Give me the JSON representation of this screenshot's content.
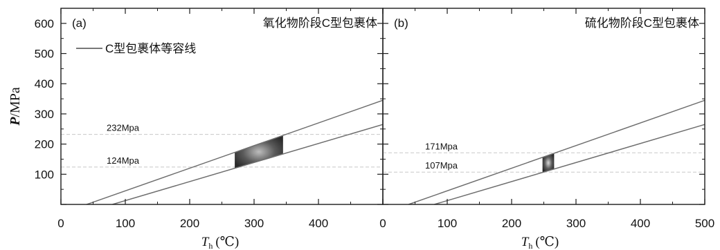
{
  "chart_data": {
    "type": "line",
    "y_axis": {
      "label_italic": "P",
      "label_rest": "/MPa",
      "range": [
        0,
        650
      ],
      "ticks": [
        100,
        200,
        300,
        400,
        500,
        600
      ]
    },
    "x_axis": {
      "label_italic": "T",
      "label_sub": "h",
      "label_unit": "(℃)",
      "range": [
        0,
        500
      ]
    },
    "panels": [
      {
        "tag": "(a)",
        "title": "氧化物阶段C型包裹体",
        "x_ticks": [
          "0",
          "100",
          "200",
          "300",
          "400",
          ""
        ],
        "legend": {
          "label": "C型包裹体等容线",
          "placement": "top-left"
        },
        "isochores": [
          {
            "x": [
              40,
              500
            ],
            "y": [
              0,
              345
            ]
          },
          {
            "x": [
              80,
              500
            ],
            "y": [
              0,
              265
            ]
          }
        ],
        "reference_lines": [
          {
            "y": 232,
            "label": "232Mpa"
          },
          {
            "y": 124,
            "label": "124Mpa"
          }
        ],
        "shaded_region": {
          "x_range": [
            270,
            345
          ]
        }
      },
      {
        "tag": "(b)",
        "title": "硫化物阶段C型包裹体",
        "x_ticks": [
          "0",
          "100",
          "200",
          "300",
          "400",
          "500"
        ],
        "legend": null,
        "isochores": [
          {
            "x": [
              40,
              500
            ],
            "y": [
              0,
              345
            ]
          },
          {
            "x": [
              80,
              500
            ],
            "y": [
              0,
              265
            ]
          }
        ],
        "reference_lines": [
          {
            "y": 171,
            "label": "171Mpa"
          },
          {
            "y": 107,
            "label": "107Mpa"
          }
        ],
        "shaded_region": {
          "x_range": [
            248,
            266
          ]
        }
      }
    ]
  }
}
